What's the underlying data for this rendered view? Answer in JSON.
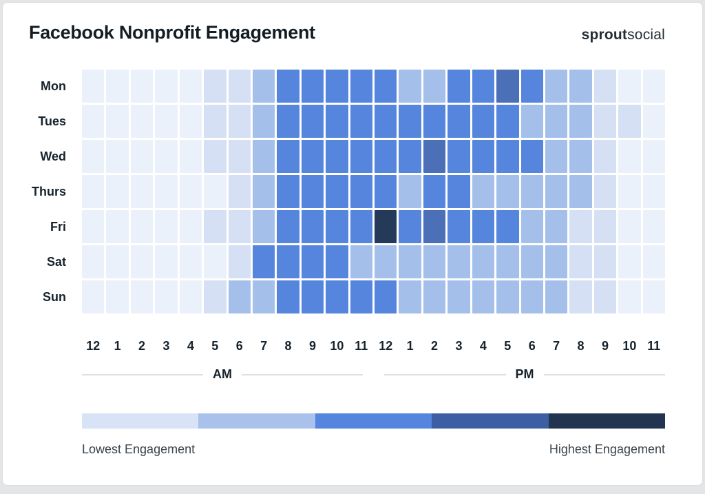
{
  "header": {
    "title": "Facebook Nonprofit Engagement",
    "brand": {
      "bold": "sprout",
      "light": "social"
    }
  },
  "chart_data": {
    "type": "heatmap",
    "title": "Facebook Nonprofit Engagement",
    "x_axis": {
      "hour_labels": [
        "12",
        "1",
        "2",
        "3",
        "4",
        "5",
        "6",
        "7",
        "8",
        "9",
        "10",
        "11",
        "12",
        "1",
        "2",
        "3",
        "4",
        "5",
        "6",
        "7",
        "8",
        "9",
        "10",
        "11"
      ],
      "period_labels": [
        "AM",
        "PM"
      ]
    },
    "y_axis": {
      "day_labels": [
        "Mon",
        "Tues",
        "Wed",
        "Thurs",
        "Fri",
        "Sat",
        "Sun"
      ]
    },
    "level_colors": [
      "#EBF1FA",
      "#D5E0F5",
      "#A4C0EA",
      "#5585DC",
      "#4B70B8",
      "#243A58"
    ],
    "rows": [
      {
        "day": "Mon",
        "levels": [
          0,
          0,
          0,
          0,
          0,
          1,
          1,
          2,
          3,
          3,
          3,
          3,
          3,
          2,
          2,
          3,
          3,
          4,
          3,
          2,
          2,
          1,
          0,
          0
        ]
      },
      {
        "day": "Tues",
        "levels": [
          0,
          0,
          0,
          0,
          0,
          1,
          1,
          2,
          3,
          3,
          3,
          3,
          3,
          3,
          3,
          3,
          3,
          3,
          2,
          2,
          2,
          1,
          1,
          0
        ]
      },
      {
        "day": "Wed",
        "levels": [
          0,
          0,
          0,
          0,
          0,
          1,
          1,
          2,
          3,
          3,
          3,
          3,
          3,
          3,
          4,
          3,
          3,
          3,
          3,
          2,
          2,
          1,
          0,
          0
        ]
      },
      {
        "day": "Thurs",
        "levels": [
          0,
          0,
          0,
          0,
          0,
          0,
          1,
          2,
          3,
          3,
          3,
          3,
          3,
          2,
          3,
          3,
          2,
          2,
          2,
          2,
          2,
          1,
          0,
          0
        ]
      },
      {
        "day": "Fri",
        "levels": [
          0,
          0,
          0,
          0,
          0,
          1,
          1,
          2,
          3,
          3,
          3,
          3,
          5,
          3,
          4,
          3,
          3,
          3,
          2,
          2,
          1,
          1,
          0,
          0
        ]
      },
      {
        "day": "Sat",
        "levels": [
          0,
          0,
          0,
          0,
          0,
          0,
          1,
          3,
          3,
          3,
          3,
          2,
          2,
          2,
          2,
          2,
          2,
          2,
          2,
          2,
          1,
          1,
          0,
          0
        ]
      },
      {
        "day": "Sun",
        "levels": [
          0,
          0,
          0,
          0,
          0,
          1,
          2,
          2,
          3,
          3,
          3,
          3,
          3,
          2,
          2,
          2,
          2,
          2,
          2,
          2,
          1,
          1,
          0,
          0
        ]
      }
    ],
    "legend": {
      "colors": [
        "#D8E3F5",
        "#A8C2EB",
        "#5585DC",
        "#3D5EA2",
        "#233450"
      ],
      "min_label": "Lowest Engagement",
      "max_label": "Highest Engagement"
    }
  }
}
